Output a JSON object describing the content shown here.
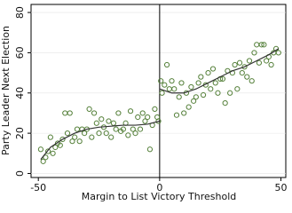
{
  "chart_data": {
    "type": "scatter",
    "xlabel": "Margin to List Victory Threshold",
    "ylabel": "Party Leader Next Election",
    "xlim": [
      -53,
      52
    ],
    "ylim": [
      -2,
      84
    ],
    "xticks": [
      -50,
      0,
      50
    ],
    "yticks": [
      0,
      20,
      40,
      60,
      80
    ],
    "cutoff": 0,
    "color": "#55803a",
    "line_color": "#333333",
    "x": [
      -49,
      -48,
      -47,
      -46,
      -45,
      -44,
      -43,
      -42,
      -41,
      -40,
      -39,
      -38,
      -37,
      -36,
      -35,
      -34,
      -33,
      -32,
      -31,
      -30,
      -29,
      -28,
      -27,
      -26,
      -25,
      -24,
      -23,
      -22,
      -21,
      -20,
      -19,
      -18,
      -17,
      -16,
      -15,
      -14,
      -13,
      -12,
      -11,
      -10,
      -9,
      -8,
      -7,
      -6,
      -5,
      -4,
      -3,
      -2,
      -1,
      -0.5,
      0.5,
      1,
      2,
      3,
      4,
      5,
      6,
      7,
      8,
      9,
      10,
      11,
      12,
      13,
      14,
      15,
      16,
      17,
      18,
      19,
      20,
      21,
      22,
      23,
      24,
      25,
      26,
      27,
      28,
      29,
      30,
      31,
      32,
      33,
      34,
      35,
      36,
      37,
      38,
      39,
      40,
      41,
      42,
      43,
      44,
      45,
      46,
      47,
      48,
      49
    ],
    "y": [
      12,
      6,
      8,
      11,
      18,
      10,
      13,
      15,
      14,
      17,
      30,
      20,
      30,
      16,
      18,
      22,
      16,
      22,
      20,
      22,
      32,
      18,
      30,
      25,
      20,
      27,
      23,
      20,
      26,
      18,
      25,
      22,
      30,
      21,
      22,
      25,
      19,
      31,
      22,
      20,
      28,
      22,
      30,
      26,
      28,
      12,
      24,
      32,
      28,
      26,
      46,
      40,
      44,
      54,
      42,
      46,
      42,
      29,
      38,
      45,
      30,
      40,
      33,
      43,
      36,
      38,
      45,
      48,
      39,
      44,
      50,
      42,
      52,
      45,
      40,
      47,
      47,
      35,
      51,
      40,
      50,
      54,
      42,
      55,
      50,
      53,
      48,
      56,
      46,
      60,
      64,
      55,
      64,
      64,
      56,
      58,
      54,
      60,
      62,
      60
    ],
    "fits": [
      {
        "x": [
          -49,
          -45,
          -40,
          -35,
          -30,
          -25,
          -20,
          -15,
          -10,
          -5,
          0
        ],
        "y": [
          7,
          13,
          17,
          20,
          22,
          23,
          23.5,
          24,
          24,
          24.5,
          26
        ]
      },
      {
        "x": [
          0,
          5,
          10,
          15,
          20,
          25,
          30,
          35,
          40,
          45,
          49
        ],
        "y": [
          42,
          40,
          40,
          42,
          45,
          48,
          51,
          53,
          56,
          59,
          62
        ]
      }
    ]
  }
}
